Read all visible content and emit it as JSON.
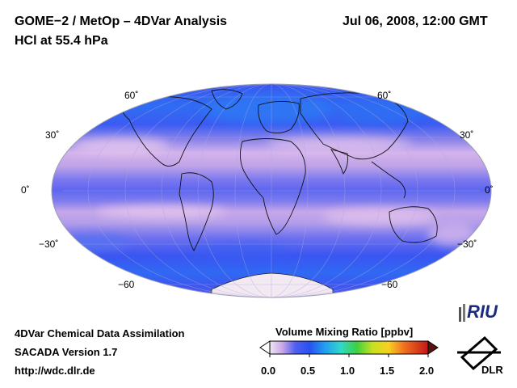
{
  "header": {
    "title_line1": "GOME−2 / MetOp – 4DVar Analysis",
    "title_line2": "HCl at 55.4 hPa",
    "datetime": "Jul 06, 2008, 12:00 GMT"
  },
  "map": {
    "projection": "Mollweide",
    "lat_labels_left": [
      "60˚",
      "30˚",
      "0˚",
      "−30˚",
      "−60"
    ],
    "lat_labels_right": [
      "60˚",
      "30˚",
      "0˚",
      "−30˚",
      "−60"
    ]
  },
  "footer": {
    "line1": "4DVar Chemical Data Assimilation",
    "line2": "SACADA Version 1.7",
    "line3": "http://wdc.dlr.de"
  },
  "colorbar": {
    "title": "Volume Mixing Ratio [ppbv]",
    "ticks": [
      "0.0",
      "0.5",
      "1.0",
      "1.5",
      "2.0"
    ]
  },
  "logos": {
    "riu": "RIU",
    "dlr": "DLR"
  },
  "colors": {
    "deep_blue": "#3a4cf0",
    "blue": "#3f67f2",
    "lavender": "#c8a6e8",
    "pink": "#e7c8ee",
    "antarctica": "#f3e9f2"
  }
}
